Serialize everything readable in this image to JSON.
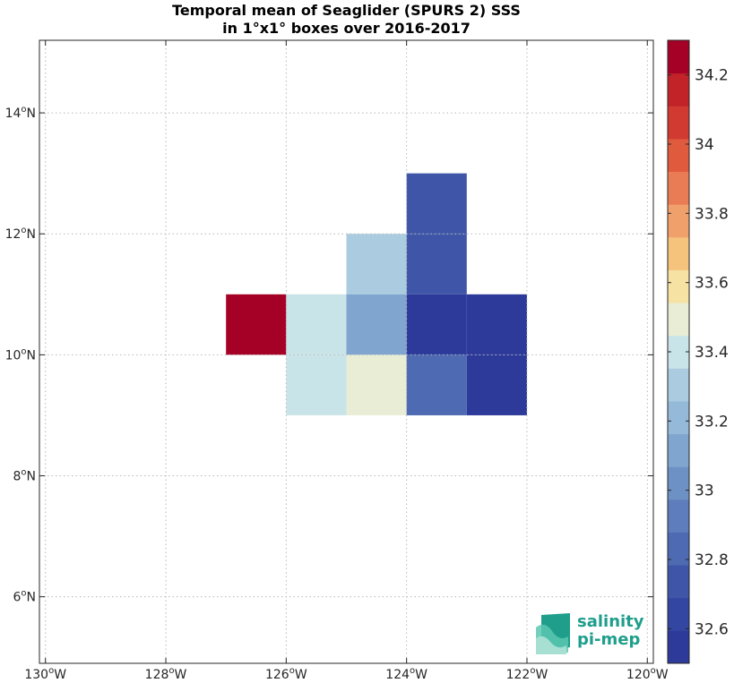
{
  "title": {
    "line1": "Temporal mean of Seaglider (SPURS 2) SSS",
    "line2": "in 1°x1° boxes over 2016-2017"
  },
  "chart_data": {
    "type": "heatmap",
    "x_ticks": [
      {
        "value": -130,
        "label": "130",
        "hem": "W"
      },
      {
        "value": -128,
        "label": "128",
        "hem": "W"
      },
      {
        "value": -126,
        "label": "126",
        "hem": "W"
      },
      {
        "value": -124,
        "label": "124",
        "hem": "W"
      },
      {
        "value": -122,
        "label": "122",
        "hem": "W"
      },
      {
        "value": -120,
        "label": "120",
        "hem": "W"
      }
    ],
    "y_ticks": [
      {
        "value": 6,
        "label": "6",
        "hem": "N"
      },
      {
        "value": 8,
        "label": "8",
        "hem": "N"
      },
      {
        "value": 10,
        "label": "10",
        "hem": "N"
      },
      {
        "value": 12,
        "label": "12",
        "hem": "N"
      },
      {
        "value": 14,
        "label": "14",
        "hem": "N"
      }
    ],
    "xlim": [
      -130.1,
      -119.9
    ],
    "ylim": [
      4.9,
      15.2
    ],
    "grid": true,
    "cells": [
      {
        "lon": -127,
        "lat": 10,
        "value": 34.3
      },
      {
        "lon": -126,
        "lat": 10,
        "value": 33.38
      },
      {
        "lon": -125,
        "lat": 11,
        "value": 33.26
      },
      {
        "lon": -125,
        "lat": 10,
        "value": 33.14
      },
      {
        "lon": -124,
        "lat": 12,
        "value": 32.75
      },
      {
        "lon": -124,
        "lat": 11,
        "value": 32.75
      },
      {
        "lon": -124,
        "lat": 10,
        "value": 32.55
      },
      {
        "lon": -123,
        "lat": 10,
        "value": 32.55
      },
      {
        "lon": -126,
        "lat": 9,
        "value": 33.38
      },
      {
        "lon": -125,
        "lat": 9,
        "value": 33.45
      },
      {
        "lon": -124,
        "lat": 9,
        "value": 32.85
      },
      {
        "lon": -123,
        "lat": 9,
        "value": 32.55
      }
    ],
    "colorbar": {
      "min": 32.5,
      "max": 34.3,
      "ticks": [
        32.6,
        32.8,
        33,
        33.2,
        33.4,
        33.6,
        33.8,
        34,
        34.2
      ],
      "tick_labels": [
        "32.6",
        "32.8",
        "33",
        "33.2",
        "33.4",
        "33.6",
        "33.8",
        "34",
        "34.2"
      ],
      "colors": [
        "#2d3a9a",
        "#3346a1",
        "#3f56a8",
        "#4e6ab2",
        "#5d7dbc",
        "#6d91c4",
        "#80a6cf",
        "#95bad9",
        "#abcce0",
        "#c9e4e8",
        "#e9edd6",
        "#f6e2a3",
        "#f6c37c",
        "#f0a06b",
        "#ea7c55",
        "#e05a3e",
        "#d13a31",
        "#c12329",
        "#a50026"
      ]
    }
  },
  "logo": {
    "line1": "salinity",
    "line2": "pi-mep"
  }
}
